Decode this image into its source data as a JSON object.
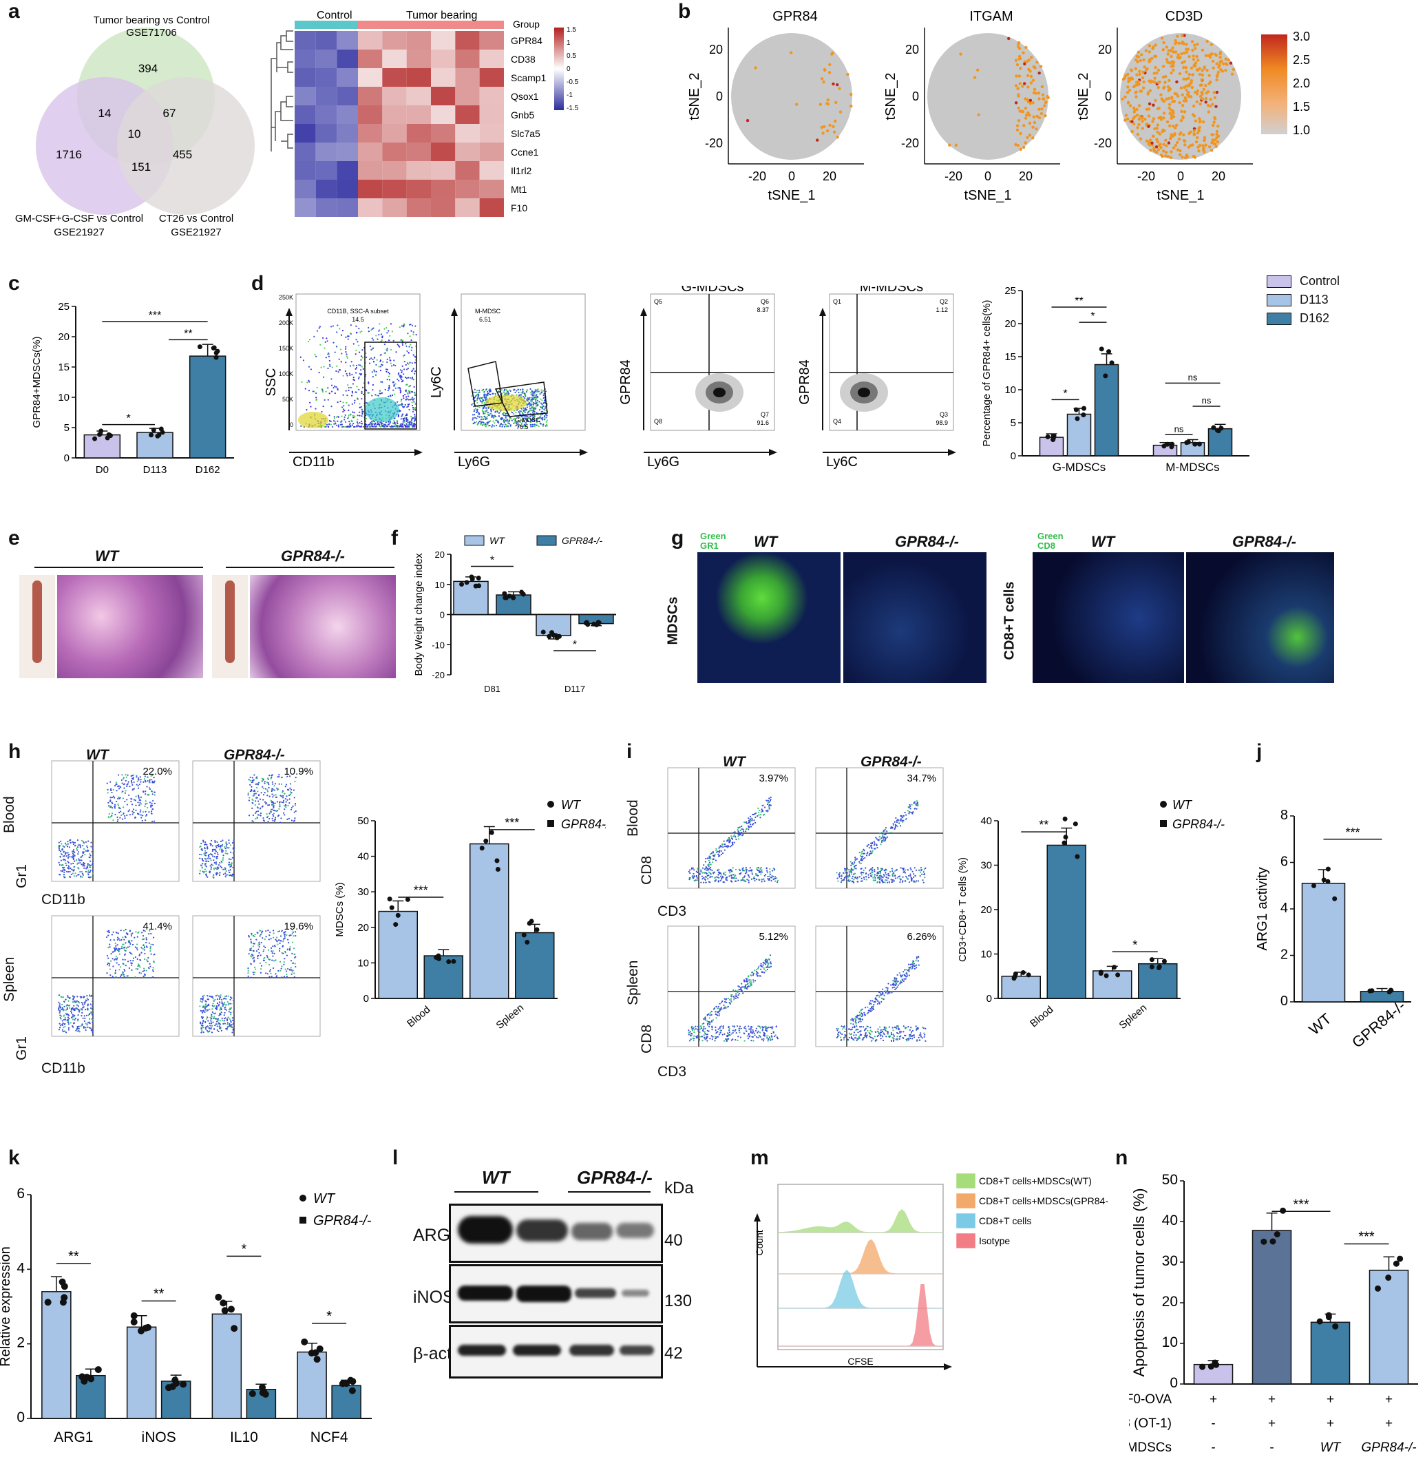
{
  "panel_letters": {
    "a": "a",
    "b": "b",
    "c": "c",
    "d": "d",
    "e": "e",
    "f": "f",
    "g": "g",
    "h": "h",
    "i": "i",
    "j": "j",
    "k": "k",
    "l": "l",
    "m": "m",
    "n": "n"
  },
  "venn": {
    "set1_title": "Tumor bearing vs Control",
    "set1_sub": "GSE71706",
    "set2_title": "GM-CSF+G-CSF vs Control",
    "set2_sub": "GSE21927",
    "set3_title": "CT26 vs Control",
    "set3_sub": "GSE21927",
    "n1": "394",
    "n12": "14",
    "n13": "67",
    "n123": "10",
    "n2": "1716",
    "n23": "151",
    "n3": "455",
    "colors": {
      "set1": "#cfe8c4",
      "set2": "#d8c3ea",
      "set3": "#dedada"
    }
  },
  "heatmap": {
    "group_label": "Group",
    "control_label": "Control",
    "tumor_label": "Tumor bearing",
    "genes": [
      "GPR84",
      "CD38",
      "Scamp1",
      "Qsox1",
      "Gnb5",
      "Slc7a5",
      "Ccne1",
      "Il1rl2",
      "Mt1",
      "F10"
    ],
    "scale_ticks": [
      "1.5",
      "1",
      "0.5",
      "0",
      "-0.5",
      "-1",
      "-1.5"
    ]
  },
  "tsne": {
    "titles": [
      "GPR84",
      "ITGAM",
      "CD3D"
    ],
    "xlabel": "tSNE_1",
    "ylabel": "tSNE_2",
    "ticks": [
      "-20",
      "0",
      "20"
    ],
    "scale_ticks": [
      "3.0",
      "2.5",
      "2.0",
      "1.5",
      "1.0"
    ]
  },
  "panel_c": {
    "chart_data": {
      "type": "bar",
      "categories": [
        "D0",
        "D113",
        "D162"
      ],
      "values": [
        3.8,
        4.2,
        16.8
      ],
      "ylabel": "GPR84+MDSCs(%)",
      "ylim": [
        0,
        25
      ],
      "yticks": [
        "0",
        "5",
        "10",
        "15",
        "20",
        "25"
      ],
      "significance": [
        "*",
        "**",
        "***"
      ]
    }
  },
  "flow_d": {
    "plot1": {
      "gate": "CD11B, SSC-A subset",
      "pct": "14.5",
      "x": "CD11b",
      "y": "SSC",
      "yticks": [
        "250K",
        "200K",
        "150K",
        "100K",
        "50K",
        "0"
      ]
    },
    "plot2": {
      "gate1": "M-MDSC",
      "pct1": "6.51",
      "gate2": "G-MDSC",
      "pct2": "76.5",
      "x": "Ly6G",
      "y": "Ly6C"
    },
    "plot3": {
      "title": "G-MDSCs",
      "x": "Ly6G",
      "y": "GPR84",
      "q5": "Q5",
      "q6": "Q6",
      "q6v": "8.37",
      "q8": "Q8",
      "q7": "Q7",
      "q7v": "91.6"
    },
    "plot4": {
      "title": "M-MDSCs",
      "x": "Ly6C",
      "y": "GPR84",
      "q1": "Q1",
      "q2": "Q2",
      "q2v": "1.12",
      "q4": "Q4",
      "q3": "Q3",
      "q3v": "98.9"
    }
  },
  "panel_d_chart": {
    "chart_data": {
      "type": "bar",
      "categories": [
        "G-MDSCs",
        "M-MDSCs"
      ],
      "series": [
        {
          "name": "Control",
          "values": [
            2.8,
            1.6
          ],
          "color": "#c9c3ec"
        },
        {
          "name": "D113",
          "values": [
            6.3,
            2.0
          ],
          "color": "#a7c4e6"
        },
        {
          "name": "D162",
          "values": [
            13.8,
            4.1
          ],
          "color": "#3f7fa5"
        }
      ],
      "ylabel": "Percentage of GPR84+ cells(%)",
      "ylim": [
        0,
        25
      ],
      "yticks": [
        "0",
        "5",
        "10",
        "15",
        "20",
        "25"
      ],
      "significance": [
        "*",
        "*",
        "**",
        "ns",
        "ns",
        "ns"
      ]
    }
  },
  "panel_e": {
    "wt": "WT",
    "ko": "GPR84-/-"
  },
  "panel_f": {
    "chart_data": {
      "type": "bar",
      "categories": [
        "D81",
        "D117"
      ],
      "series": [
        {
          "name": "WT",
          "values": [
            11,
            -7
          ],
          "color": "#a7c4e6"
        },
        {
          "name": "GPR84-/-",
          "values": [
            6.5,
            -3
          ],
          "color": "#3f7fa5"
        }
      ],
      "ylabel": "Body Weight change index",
      "ylim": [
        -20,
        20
      ],
      "yticks": [
        "20",
        "10",
        "0",
        "-10",
        "-20"
      ],
      "significance": [
        "*",
        "*"
      ]
    }
  },
  "panel_g": {
    "green1": "Green",
    "marker1": "GR1",
    "green2": "Green",
    "marker2": "CD8",
    "wt": "WT",
    "ko": "GPR84-/-",
    "row1": "MDSCs",
    "row2": "CD8+T cells"
  },
  "panel_h": {
    "wt": "WT",
    "ko": "GPR84-/-",
    "blood": "Blood",
    "spleen": "Spleen",
    "x": "CD11b",
    "y": "Gr1",
    "pcts": [
      "22.0%",
      "10.9%",
      "41.4%",
      "19.6%"
    ],
    "legend": [
      "WT",
      "GPR84-/-"
    ],
    "chart_data": {
      "type": "bar",
      "categories": [
        "Blood",
        "Spleen"
      ],
      "series": [
        {
          "name": "WT",
          "values": [
            24.5,
            43.5
          ],
          "color": "#a7c4e6"
        },
        {
          "name": "GPR84-/-",
          "values": [
            12,
            18.5
          ],
          "color": "#3f7fa5"
        }
      ],
      "ylabel": "MDSCs (%)",
      "ylim": [
        0,
        50
      ],
      "yticks": [
        "0",
        "10",
        "20",
        "30",
        "40",
        "50"
      ],
      "significance": [
        "***",
        "***"
      ]
    }
  },
  "panel_i": {
    "wt": "WT",
    "ko": "GPR84-/-",
    "blood": "Blood",
    "spleen": "Spleen",
    "x": "CD3",
    "y": "CD8",
    "pcts": [
      "3.97%",
      "34.7%",
      "5.12%",
      "6.26%"
    ],
    "legend": [
      "WT",
      "GPR84-/-"
    ],
    "chart_data": {
      "type": "bar",
      "categories": [
        "Blood",
        "Spleen"
      ],
      "series": [
        {
          "name": "WT",
          "values": [
            5,
            6.2
          ],
          "color": "#a7c4e6"
        },
        {
          "name": "GPR84-/-",
          "values": [
            34.5,
            7.8
          ],
          "color": "#3f7fa5"
        }
      ],
      "ylabel": "CD3+CD8+ T cells (%)",
      "ylim": [
        0,
        40
      ],
      "yticks": [
        "0",
        "10",
        "20",
        "30",
        "40"
      ],
      "significance": [
        "**",
        "*"
      ]
    }
  },
  "panel_j": {
    "chart_data": {
      "type": "bar",
      "categories": [
        "WT",
        "GPR84-/-"
      ],
      "values": [
        5.1,
        0.45
      ],
      "ylabel": "ARG1 activity",
      "ylim": [
        0,
        8
      ],
      "yticks": [
        "0",
        "2",
        "4",
        "6",
        "8"
      ],
      "significance": [
        "***"
      ]
    }
  },
  "panel_k": {
    "legend": [
      "WT",
      "GPR84-/-"
    ],
    "chart_data": {
      "type": "bar",
      "categories": [
        "ARG1",
        "iNOS",
        "IL10",
        "NCF4"
      ],
      "series": [
        {
          "name": "WT",
          "values": [
            3.4,
            2.45,
            2.8,
            1.78
          ],
          "color": "#a7c4e6"
        },
        {
          "name": "GPR84-/-",
          "values": [
            1.15,
            1.0,
            0.78,
            0.88
          ],
          "color": "#3f7fa5"
        }
      ],
      "ylabel": "Relative  expression",
      "ylim": [
        0,
        6
      ],
      "yticks": [
        "0",
        "2",
        "4",
        "6"
      ],
      "significance": [
        "**",
        "**",
        "*",
        "*"
      ]
    }
  },
  "panel_l": {
    "wt": "WT",
    "ko": "GPR84-/-",
    "kda": "kDa",
    "rows": [
      "ARG1",
      "iNOS",
      "β-actin"
    ],
    "mw": [
      "40",
      "130",
      "42"
    ]
  },
  "panel_m": {
    "legend": [
      "CD8+T cells+MDSCs(WT)",
      "CD8+T cells+MDSCs(GPR84-/-)",
      "CD8+T cells",
      "Isotype"
    ],
    "colors": [
      "#a6dc7a",
      "#f3a96a",
      "#7ccbe6",
      "#f27d85"
    ],
    "x": "CFSE",
    "y": "Count"
  },
  "panel_n": {
    "chart_data": {
      "type": "bar",
      "categories": [
        "1",
        "2",
        "3",
        "4"
      ],
      "values": [
        4.8,
        37.8,
        15.2,
        28
      ],
      "ylabel": "Apoptosis of tumor cells (%)",
      "ylim": [
        0,
        50
      ],
      "yticks": [
        "0",
        "10",
        "20",
        "30",
        "40",
        "50"
      ],
      "significance": [
        "***",
        "***"
      ],
      "colors": [
        "#c9c3ec",
        "#5a7397",
        "#3f7fa5",
        "#a7c4e6"
      ]
    },
    "row_labels": [
      "B16F0-OVA",
      "CD8 (OT-1)",
      "MDSCs"
    ],
    "row_values": [
      [
        "+",
        "+",
        "+",
        "+"
      ],
      [
        "-",
        "+",
        "+",
        "+"
      ],
      [
        "-",
        "-",
        "WT",
        "GPR84-/-"
      ]
    ]
  }
}
